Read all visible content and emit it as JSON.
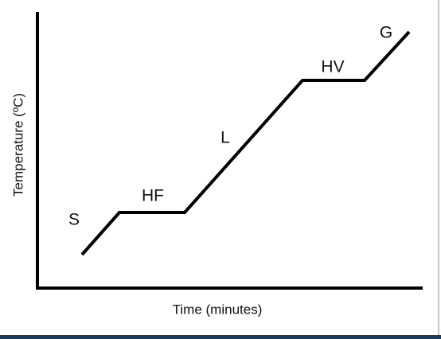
{
  "diagram": {
    "y_axis_label": "Temperature (ºC)",
    "x_axis_label": "Time (minutes)",
    "segments": [
      {
        "label": "S"
      },
      {
        "label": "HF"
      },
      {
        "label": "L"
      },
      {
        "label": "HV"
      },
      {
        "label": "G"
      }
    ]
  }
}
